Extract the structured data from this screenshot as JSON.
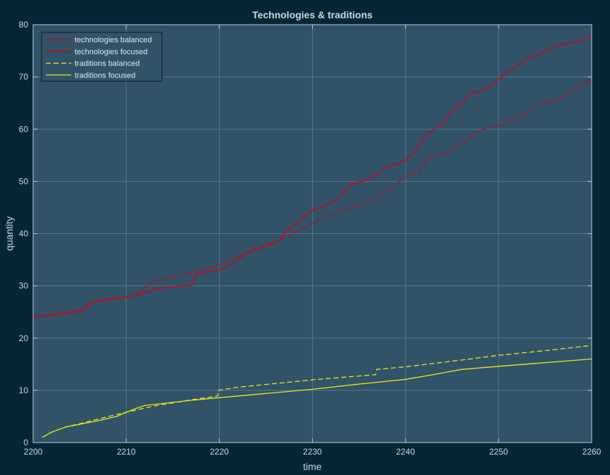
{
  "chart_data": {
    "type": "line",
    "title": "Technologies & traditions",
    "xlabel": "time",
    "ylabel": "quantity",
    "xlim": [
      2200,
      2260
    ],
    "ylim": [
      0,
      80
    ],
    "xticks": [
      2200,
      2210,
      2220,
      2230,
      2240,
      2250,
      2260
    ],
    "yticks": [
      0,
      10,
      20,
      30,
      40,
      50,
      60,
      70,
      80
    ],
    "grid": true,
    "legend_position": "top-left",
    "colors": {
      "background": "#062636",
      "plot_area": "#325268",
      "grid": "#57778e",
      "axis": "#b8cad8",
      "technologies": "#a3192e",
      "traditions": "#e8e81a"
    },
    "series": [
      {
        "name": "technologies balanced",
        "style": "dashed",
        "color": "#a3192e",
        "points": [
          [
            2200,
            24
          ],
          [
            2202,
            24.4
          ],
          [
            2204,
            24.8
          ],
          [
            2205,
            25
          ],
          [
            2206,
            26.6
          ],
          [
            2207,
            27
          ],
          [
            2209,
            27.5
          ],
          [
            2211,
            28.3
          ],
          [
            2212,
            29.8
          ],
          [
            2213,
            30.8
          ],
          [
            2215,
            31.6
          ],
          [
            2217,
            32.4
          ],
          [
            2219,
            33.5
          ],
          [
            2221,
            34.8
          ],
          [
            2223,
            36.4
          ],
          [
            2225,
            37.8
          ],
          [
            2226.5,
            38.7
          ],
          [
            2228,
            40
          ],
          [
            2230,
            42
          ],
          [
            2232,
            43.6
          ],
          [
            2234,
            45
          ],
          [
            2236,
            46
          ],
          [
            2238,
            48
          ],
          [
            2240,
            51
          ],
          [
            2241.5,
            52
          ],
          [
            2242.5,
            54.5
          ],
          [
            2244,
            55.2
          ],
          [
            2246,
            57.2
          ],
          [
            2248,
            59.8
          ],
          [
            2250,
            60.7
          ],
          [
            2251,
            61.6
          ],
          [
            2252,
            62.4
          ],
          [
            2253,
            62.8
          ],
          [
            2254,
            64.5
          ],
          [
            2256,
            65.6
          ],
          [
            2258,
            67.2
          ],
          [
            2260,
            69.5
          ]
        ]
      },
      {
        "name": "technologies focused",
        "style": "solid",
        "color": "#a3192e",
        "points": [
          [
            2200,
            24
          ],
          [
            2202,
            24.5
          ],
          [
            2204,
            25
          ],
          [
            2205.5,
            25.3
          ],
          [
            2206,
            26.5
          ],
          [
            2207,
            27.2
          ],
          [
            2209,
            27.7
          ],
          [
            2211,
            28.1
          ],
          [
            2212,
            28.8
          ],
          [
            2213,
            29.4
          ],
          [
            2215,
            29.8
          ],
          [
            2217,
            30.1
          ],
          [
            2217.5,
            32.3
          ],
          [
            2219,
            32.8
          ],
          [
            2220,
            33
          ],
          [
            2221,
            33.8
          ],
          [
            2222,
            35
          ],
          [
            2223,
            36.3
          ],
          [
            2225,
            37.6
          ],
          [
            2226.5,
            38.7
          ],
          [
            2227,
            40.2
          ],
          [
            2228,
            41.5
          ],
          [
            2229,
            43
          ],
          [
            2230,
            44.5
          ],
          [
            2231,
            45
          ],
          [
            2232,
            45.8
          ],
          [
            2233,
            47
          ],
          [
            2234,
            49.2
          ],
          [
            2236,
            50.5
          ],
          [
            2238,
            52.5
          ],
          [
            2240,
            54
          ],
          [
            2241,
            55.7
          ],
          [
            2242,
            58.5
          ],
          [
            2243,
            59.9
          ],
          [
            2244,
            60.8
          ],
          [
            2245,
            63.5
          ],
          [
            2246,
            65
          ],
          [
            2247,
            66.8
          ],
          [
            2248,
            67.3
          ],
          [
            2249,
            68
          ],
          [
            2250,
            69.5
          ],
          [
            2251,
            71
          ],
          [
            2252,
            72
          ],
          [
            2253,
            73.5
          ],
          [
            2254,
            74
          ],
          [
            2255,
            75
          ],
          [
            2256,
            75.8
          ],
          [
            2258,
            76.6
          ],
          [
            2259,
            77.1
          ],
          [
            2260,
            78
          ]
        ]
      },
      {
        "name": "traditions balanced",
        "style": "dashed",
        "color": "#e8e81a",
        "points": [
          [
            2201,
            1
          ],
          [
            2202,
            2
          ],
          [
            2203.5,
            3
          ],
          [
            2205,
            3.6
          ],
          [
            2207,
            4.5
          ],
          [
            2209,
            5.4
          ],
          [
            2211,
            6.2
          ],
          [
            2213,
            7
          ],
          [
            2215,
            7.6
          ],
          [
            2217,
            8.2
          ],
          [
            2219.8,
            8.9
          ],
          [
            2219.9,
            10
          ],
          [
            2222,
            10.6
          ],
          [
            2226,
            11.3
          ],
          [
            2230,
            12
          ],
          [
            2236.8,
            13
          ],
          [
            2236.9,
            14
          ],
          [
            2240,
            14.5
          ],
          [
            2246,
            15.8
          ],
          [
            2250,
            16.7
          ],
          [
            2255,
            17.6
          ],
          [
            2260,
            18.6
          ]
        ]
      },
      {
        "name": "traditions focused",
        "style": "solid",
        "color": "#e8e81a",
        "points": [
          [
            2201,
            1
          ],
          [
            2202,
            2
          ],
          [
            2203.5,
            3
          ],
          [
            2205,
            3.5
          ],
          [
            2207,
            4.2
          ],
          [
            2209,
            5
          ],
          [
            2210,
            5.8
          ],
          [
            2211,
            6.5
          ],
          [
            2212,
            7.1
          ],
          [
            2214,
            7.5
          ],
          [
            2217,
            8.1
          ],
          [
            2220,
            8.6
          ],
          [
            2225,
            9.4
          ],
          [
            2230,
            10.2
          ],
          [
            2235,
            11.2
          ],
          [
            2240,
            12.1
          ],
          [
            2243,
            13
          ],
          [
            2246,
            14
          ],
          [
            2250,
            14.6
          ],
          [
            2255,
            15.3
          ],
          [
            2260,
            16
          ]
        ]
      }
    ]
  }
}
